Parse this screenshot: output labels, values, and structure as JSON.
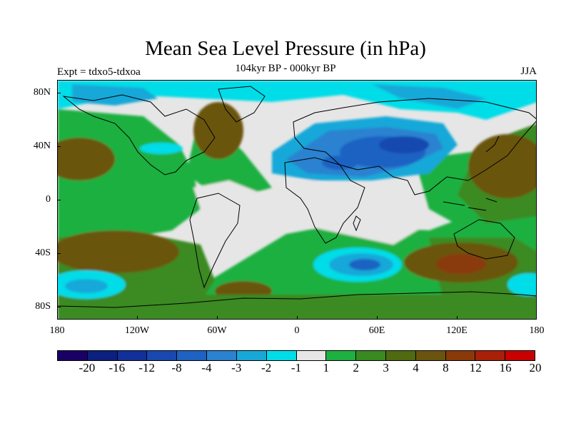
{
  "title": "Mean Sea Level Pressure (in hPa)",
  "subtitle": "104kyr BP - 000kyr BP",
  "experiment": "Expt = tdxo5-tdxoa",
  "season": "JJA",
  "lat_labels": [
    "80N",
    "40N",
    "0",
    "40S",
    "80S"
  ],
  "lon_labels": [
    "180",
    "120W",
    "60W",
    "0",
    "60E",
    "120E",
    "180"
  ],
  "colorbar": {
    "labels": [
      "-20",
      "-16",
      "-12",
      "-8",
      "-4",
      "-3",
      "-2",
      "-1",
      "1",
      "2",
      "3",
      "4",
      "8",
      "12",
      "16",
      "20"
    ],
    "colors": [
      "#1a0064",
      "#0c2080",
      "#12309a",
      "#1848b0",
      "#1e62c2",
      "#2a82d0",
      "#18a8d8",
      "#00dde8",
      "#e6e6e6",
      "#1eb040",
      "#3a8a22",
      "#4f6a10",
      "#6a5410",
      "#8a3a08",
      "#a82008",
      "#c80000"
    ]
  }
}
